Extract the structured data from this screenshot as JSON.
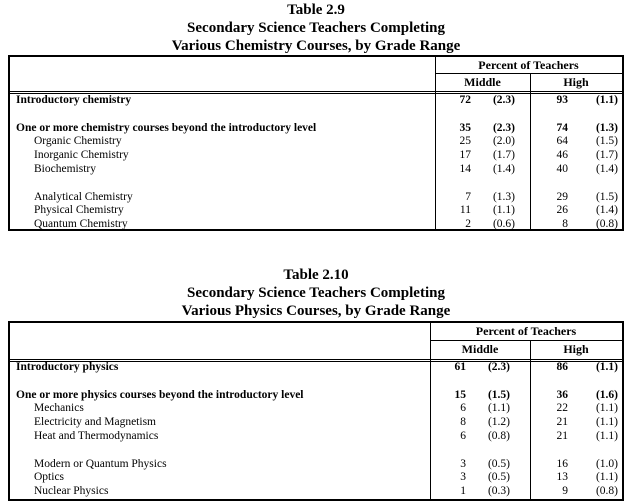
{
  "tables": [
    {
      "title": [
        "Table 2.9",
        "Secondary Science Teachers Completing",
        "Various Chemistry Courses, by Grade Range"
      ],
      "header": "Percent of Teachers",
      "col_middle": "Middle",
      "col_high": "High",
      "rows": [
        {
          "label": "Introductory chemistry",
          "bold": true,
          "middle": "72",
          "middle_se": "(2.3)",
          "high": "93",
          "high_se": "(1.1)"
        },
        null,
        {
          "label": "One or more chemistry courses beyond the introductory level",
          "bold": true,
          "middle": "35",
          "middle_se": "(2.3)",
          "high": "74",
          "high_se": "(1.3)"
        },
        {
          "label": "Organic Chemistry",
          "indent": true,
          "middle": "25",
          "middle_se": "(2.0)",
          "high": "64",
          "high_se": "(1.5)"
        },
        {
          "label": "Inorganic Chemistry",
          "indent": true,
          "middle": "17",
          "middle_se": "(1.7)",
          "high": "46",
          "high_se": "(1.7)"
        },
        {
          "label": "Biochemistry",
          "indent": true,
          "middle": "14",
          "middle_se": "(1.4)",
          "high": "40",
          "high_se": "(1.4)"
        },
        null,
        {
          "label": "Analytical Chemistry",
          "indent": true,
          "middle": "7",
          "middle_se": "(1.3)",
          "high": "29",
          "high_se": "(1.5)"
        },
        {
          "label": "Physical Chemistry",
          "indent": true,
          "middle": "11",
          "middle_se": "(1.1)",
          "high": "26",
          "high_se": "(1.4)"
        },
        {
          "label": "Quantum Chemistry",
          "indent": true,
          "middle": "2",
          "middle_se": "(0.6)",
          "high": "8",
          "high_se": "(0.8)"
        }
      ]
    },
    {
      "title": [
        "Table 2.10",
        "Secondary Science Teachers Completing",
        "Various Physics Courses, by Grade Range"
      ],
      "header": "Percent of Teachers",
      "col_middle": "Middle",
      "col_high": "High",
      "rows": [
        {
          "label": "Introductory physics",
          "bold": true,
          "middle": "61",
          "middle_se": "(2.3)",
          "high": "86",
          "high_se": "(1.1)"
        },
        null,
        {
          "label": "One or more physics courses beyond the introductory level",
          "bold": true,
          "middle": "15",
          "middle_se": "(1.5)",
          "high": "36",
          "high_se": "(1.6)"
        },
        {
          "label": "Mechanics",
          "indent": true,
          "middle": "6",
          "middle_se": "(1.1)",
          "high": "22",
          "high_se": "(1.1)"
        },
        {
          "label": "Electricity and Magnetism",
          "indent": true,
          "middle": "8",
          "middle_se": "(1.2)",
          "high": "21",
          "high_se": "(1.1)"
        },
        {
          "label": "Heat and Thermodynamics",
          "indent": true,
          "middle": "6",
          "middle_se": "(0.8)",
          "high": "21",
          "high_se": "(1.1)"
        },
        null,
        {
          "label": "Modern or Quantum Physics",
          "indent": true,
          "middle": "3",
          "middle_se": "(0.5)",
          "high": "16",
          "high_se": "(1.0)"
        },
        {
          "label": "Optics",
          "indent": true,
          "middle": "3",
          "middle_se": "(0.5)",
          "high": "13",
          "high_se": "(1.1)"
        },
        {
          "label": "Nuclear Physics",
          "indent": true,
          "middle": "1",
          "middle_se": "(0.3)",
          "high": "9",
          "high_se": "(0.8)"
        }
      ]
    }
  ]
}
